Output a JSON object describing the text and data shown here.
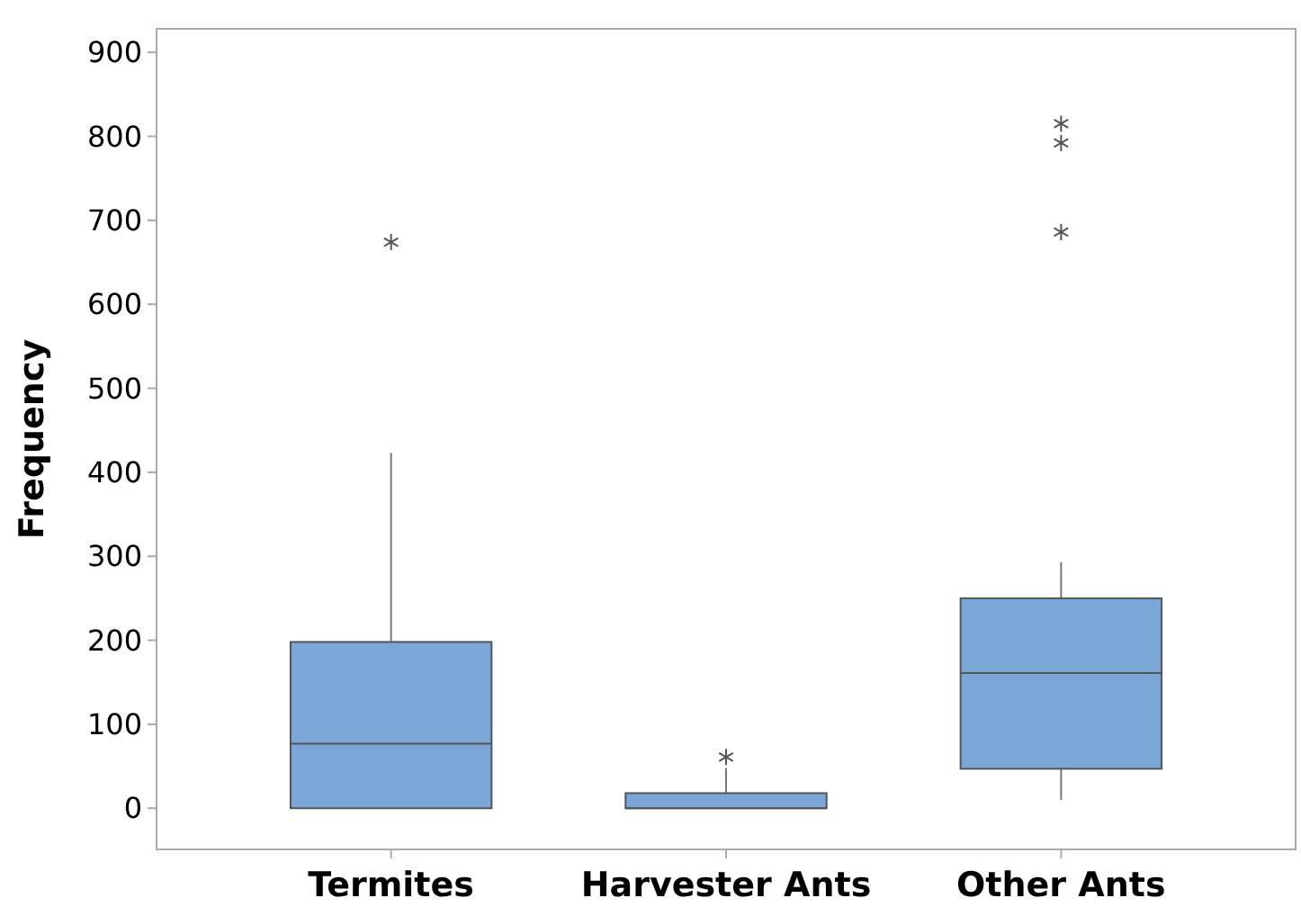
{
  "chart_data": {
    "type": "box",
    "ylabel": "Frequency",
    "categories": [
      "Termites",
      "Harvester Ants",
      "Other Ants"
    ],
    "color": "#7ba6d8",
    "boxes": [
      {
        "low": 0,
        "q1": 0,
        "median": 77,
        "q3": 198,
        "high": 423,
        "outliers": [
          674
        ]
      },
      {
        "low": 0,
        "q1": 0,
        "median": 0,
        "q3": 18,
        "high": 48,
        "outliers": [
          61
        ]
      },
      {
        "low": 10,
        "q1": 47,
        "median": 161,
        "q3": 250,
        "high": 293,
        "outliers": [
          686,
          792,
          815
        ]
      }
    ],
    "ylim": [
      -49,
      928
    ],
    "yticks": [
      0,
      100,
      200,
      300,
      400,
      500,
      600,
      700,
      800,
      900
    ],
    "grid": false,
    "marker": "star"
  }
}
